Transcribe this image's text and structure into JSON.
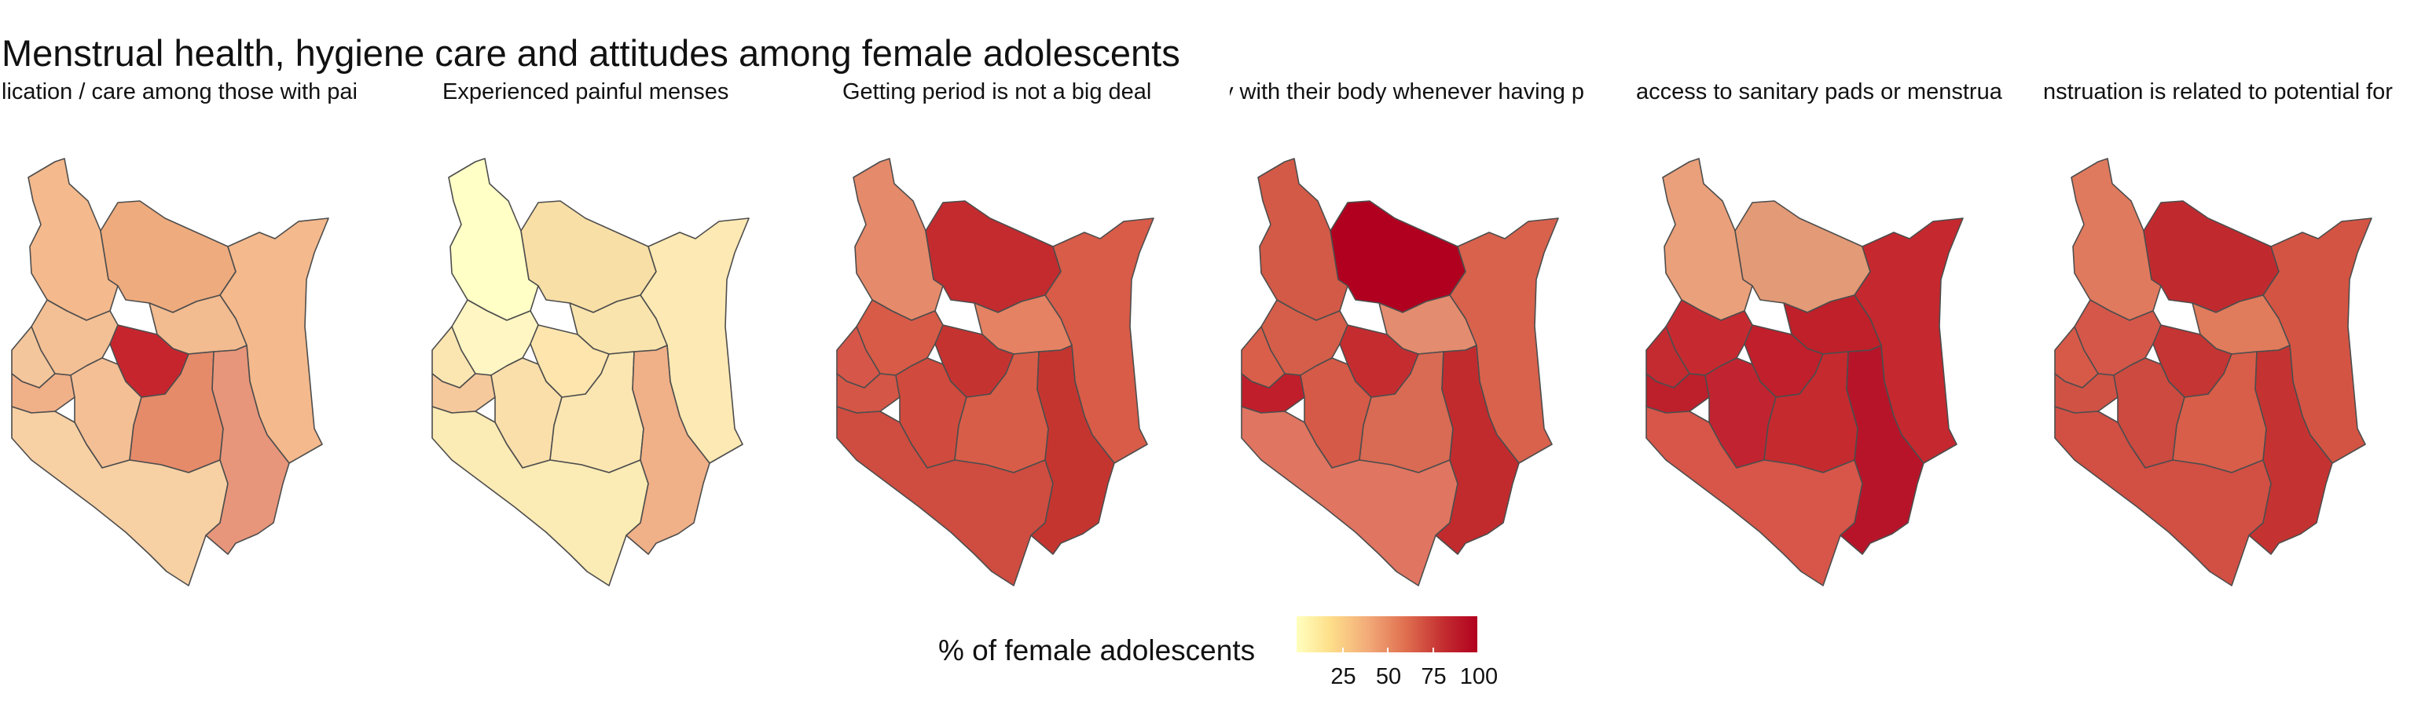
{
  "title": "Menstrual health, hygiene care and attitudes among female adolescents",
  "legend": {
    "title": "% of female adolescents",
    "ticks": [
      "25",
      "50",
      "75",
      "100"
    ]
  },
  "panels": [
    {
      "label": "Sought medication / care among those with painful menses",
      "visible_label": "lication / care among those with pai",
      "colors": [
        "#f4b98c",
        "#eeab7e",
        "#f4b98c",
        "#f2bb90",
        "#f3c095",
        "#c7252e",
        "#f4c69c",
        "#f0b088",
        "#f4bf95",
        "#e58b6a",
        "#f7d0a4",
        "#e7967b"
      ]
    },
    {
      "label": "Experienced painful menses",
      "visible_label": "Experienced painful menses",
      "colors": [
        "#ffffc6",
        "#f8dfa6",
        "#fde9b3",
        "#f9e4ad",
        "#fff6c3",
        "#fde5ad",
        "#fbe6b1",
        "#f5c99c",
        "#fadfab",
        "#fbe6b2",
        "#fbebb4",
        "#f0b088"
      ]
    },
    {
      "label": "Getting period is not a big deal",
      "visible_label": "Getting period is not a big deal",
      "colors": [
        "#e58a6b",
        "#c32b2f",
        "#d85c48",
        "#e48263",
        "#d75b47",
        "#c53331",
        "#d6574a",
        "#d45646",
        "#d04a3d",
        "#d85d48",
        "#cf4c40",
        "#c53530"
      ]
    },
    {
      "label": "Feel comfortable / happy with their body whenever having period",
      "visible_label": "y with their body whenever having p",
      "colors": [
        "#d35a47",
        "#b1001f",
        "#d8624c",
        "#e48c6f",
        "#d45e49",
        "#c52c30",
        "#d95f4a",
        "#c01e2a",
        "#d55a47",
        "#d96a53",
        "#e07561",
        "#c12b2e"
      ]
    },
    {
      "label": "Have access to sanitary pads or menstrual cups",
      "visible_label": "access to sanitary pads or menstrua",
      "colors": [
        "#eaa07a",
        "#e39a76",
        "#c5282e",
        "#bf2029",
        "#c62a30",
        "#c01f2b",
        "#c32b31",
        "#bd1f2b",
        "#c12430",
        "#c52a2f",
        "#d75649",
        "#b7142a"
      ]
    },
    {
      "label": "Menstruation is related to potential for pregnancy",
      "visible_label": "nstruation is related to potential for",
      "colors": [
        "#e07a5e",
        "#c02a2f",
        "#d45443",
        "#e07b5c",
        "#d4574a",
        "#c53533",
        "#d75a49",
        "#d05245",
        "#cc4a40",
        "#d85e49",
        "#d24f44",
        "#c43331"
      ]
    }
  ]
}
